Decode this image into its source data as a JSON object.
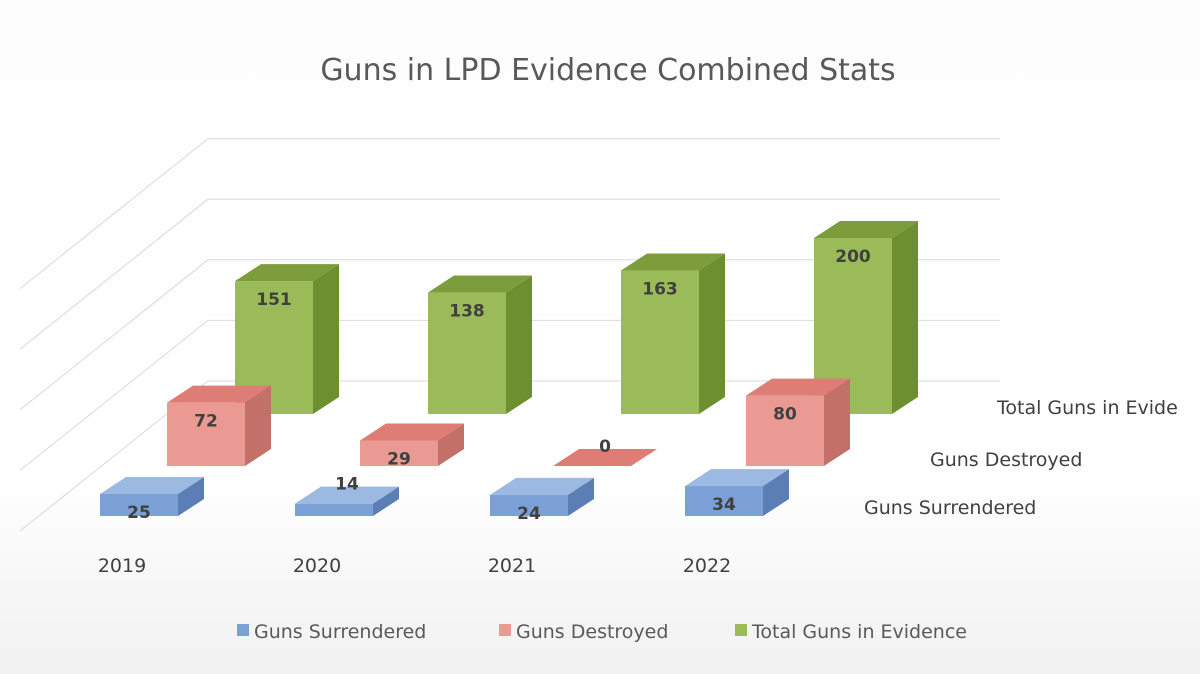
{
  "chart_data": {
    "type": "bar",
    "title": "Guns in LPD Evidence Combined Stats",
    "categories": [
      "2019",
      "2020",
      "2021",
      "2022"
    ],
    "series": [
      {
        "name": "Guns  Surrendered",
        "values": [
          25,
          14,
          24,
          34
        ],
        "color": "#7ba0d6",
        "side": "#5b7fb4",
        "top": "#9cb9e2"
      },
      {
        "name": "Guns Destroyed",
        "values": [
          72,
          29,
          0,
          80
        ],
        "color": "#ea9a93",
        "side": "#c27068",
        "top": "#dd7d75"
      },
      {
        "name": "Total Guns in Evidence",
        "values": [
          151,
          138,
          163,
          200
        ],
        "color": "#9bbb59",
        "side": "#6e8f30",
        "top": "#7d9c3c"
      }
    ],
    "depth_labels": [
      "Guns  Surrendered",
      "Guns Destroyed",
      "Total Guns in Evide"
    ],
    "legend_labels": [
      "Guns  Surrendered",
      "Guns Destroyed",
      "Total Guns in Evidence"
    ],
    "grid": true,
    "legend_position": "bottom",
    "projection": "3d"
  }
}
